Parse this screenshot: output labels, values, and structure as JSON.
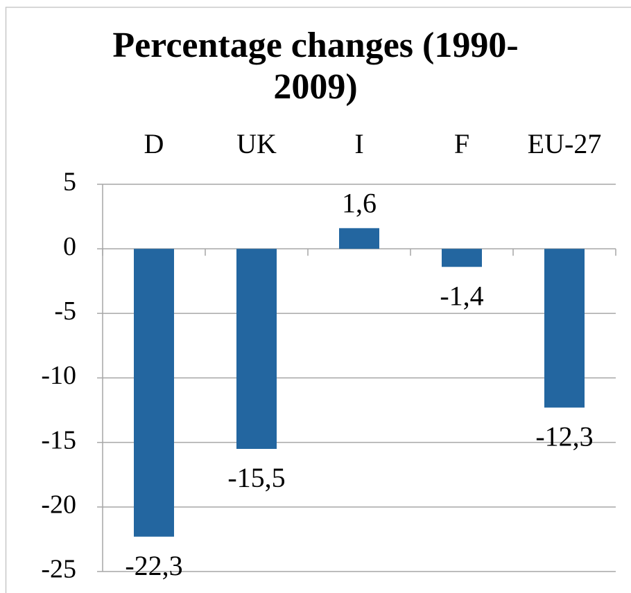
{
  "chart_data": {
    "type": "bar",
    "title": "Percentage changes (1990-2009)",
    "categories": [
      "D",
      "UK",
      "I",
      "F",
      "EU-27"
    ],
    "values": [
      -22.3,
      -15.5,
      1.6,
      -1.4,
      -12.3
    ],
    "value_labels": [
      "-22,3",
      "-15,5",
      "1,6",
      "-1,4",
      "-12,3"
    ],
    "color": "#2366a0",
    "ylim": [
      -25,
      5
    ],
    "yticks": [
      5,
      0,
      -5,
      -10,
      -15,
      -20,
      -25
    ],
    "grid": true
  }
}
